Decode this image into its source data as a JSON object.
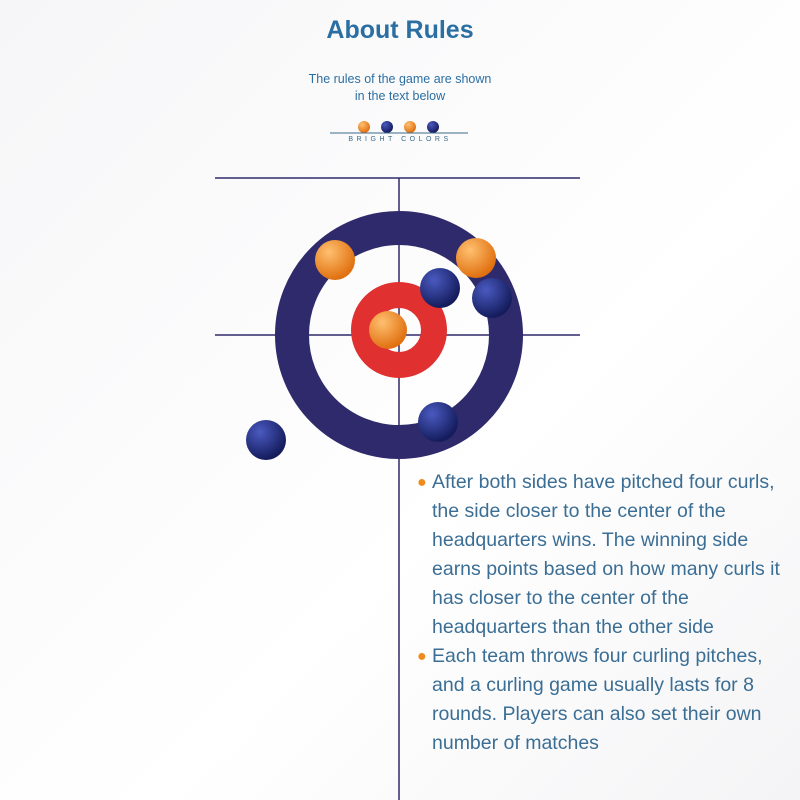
{
  "header": {
    "title": "About Rules",
    "subtitle_line1": "The rules of the game are shown",
    "subtitle_line2": "in the text below",
    "brand": "BRIGHT COLORS"
  },
  "colors": {
    "accent": "#2b6fa2",
    "ring": "#2f2a6b",
    "house_center": "#e03030",
    "orange_stone": "#f08a1c",
    "blue_stone": "#1e2a7a"
  },
  "rules": [
    "After both sides have pitched four curls, the side closer to the center of the headquarters wins. The winning side earns points based on how many curls it has closer to the center of the headquarters than the other side",
    "Each team throws four curling pitches, and a curling game usually lasts for 8 rounds. Players can also set their own number of matches"
  ]
}
